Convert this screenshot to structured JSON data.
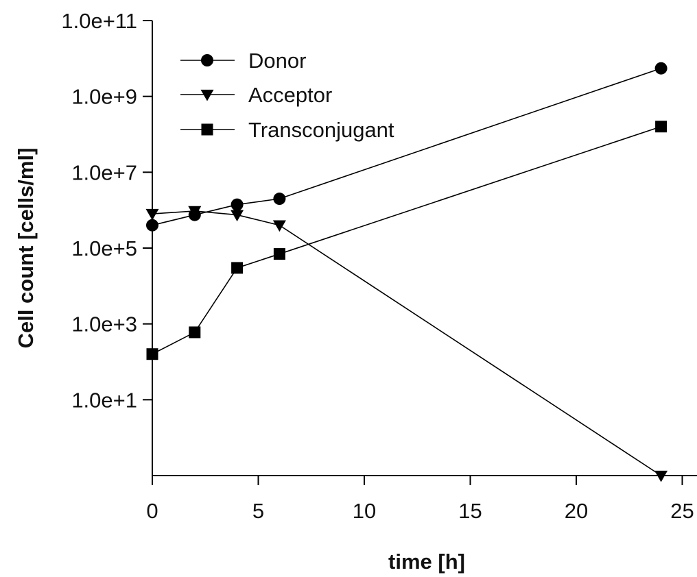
{
  "chart_data": {
    "type": "line",
    "title": "",
    "xlabel": "time [h]",
    "ylabel": "Cell count [cells/ml]",
    "xlim": [
      0,
      25
    ],
    "ylim": [
      0.1,
      100000000000
    ],
    "yscale": "log",
    "grid": false,
    "legend_position": "top-left",
    "x_ticks": [
      0,
      5,
      10,
      15,
      20,
      25
    ],
    "x_tick_labels": [
      "0",
      "5",
      "10",
      "15",
      "20",
      "25"
    ],
    "y_ticks": [
      10,
      1000,
      100000,
      10000000,
      1000000000,
      100000000000
    ],
    "y_tick_labels": [
      "1.0e+1",
      "1.0e+3",
      "1.0e+5",
      "1.0e+7",
      "1.0e+9",
      "1.0e+11"
    ],
    "series": [
      {
        "name": "Donor",
        "marker": "circle",
        "x": [
          0,
          2,
          4,
          6,
          24
        ],
        "y": [
          400000,
          750000,
          1400000,
          2000000,
          5500000000
        ]
      },
      {
        "name": "Acceptor",
        "marker": "triangle-down",
        "x": [
          0,
          2,
          4,
          6,
          24
        ],
        "y": [
          800000,
          950000,
          750000,
          400000,
          0.1
        ]
      },
      {
        "name": "Transconjugant",
        "marker": "square",
        "x": [
          0,
          2,
          4,
          6,
          24
        ],
        "y": [
          160,
          600,
          30000,
          70000,
          160000000
        ]
      }
    ]
  }
}
